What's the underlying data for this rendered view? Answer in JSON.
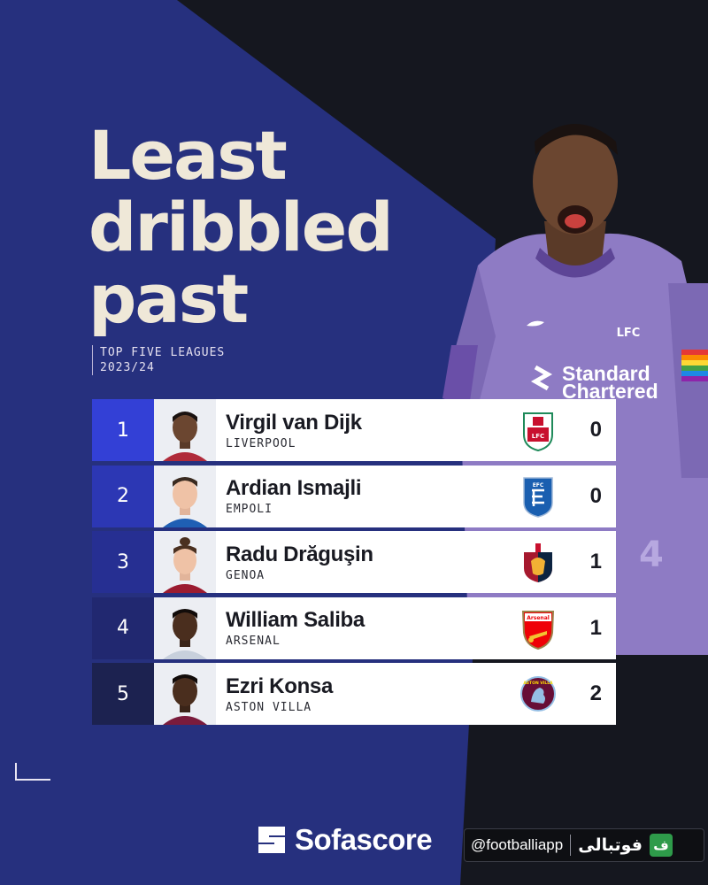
{
  "title_lines": [
    "Least",
    "dribbled",
    "past"
  ],
  "subtitle_lines": [
    "TOP FIVE LEAGUES",
    "2023/24"
  ],
  "colors": {
    "background": "#15171f",
    "panel_blue": "#26307e",
    "title_cream": "#efe8d8",
    "kit_purple": "#8e7bc4"
  },
  "hero": {
    "sponsor_line1": "Standard",
    "sponsor_line2": "Chartered",
    "crest_text": "LFC",
    "sleeve_number": "4"
  },
  "rows": [
    {
      "rank": "1",
      "name": "Virgil van Dijk",
      "club": "LIVERPOOL",
      "value": "0",
      "rank_color": "#3340d6",
      "badge_icon": "liverpool-crest-icon",
      "badge_text": "LFC"
    },
    {
      "rank": "2",
      "name": "Ardian Ismajli",
      "club": "EMPOLI",
      "value": "0",
      "rank_color": "#2c37b4",
      "badge_icon": "empoli-crest-icon",
      "badge_text": "EFC"
    },
    {
      "rank": "3",
      "name": "Radu Drăguşin",
      "club": "GENOA",
      "value": "1",
      "rank_color": "#262f92",
      "badge_icon": "genoa-crest-icon",
      "badge_text": ""
    },
    {
      "rank": "4",
      "name": "William Saliba",
      "club": "ARSENAL",
      "value": "1",
      "rank_color": "#212870",
      "badge_icon": "arsenal-crest-icon",
      "badge_text": "Arsenal"
    },
    {
      "rank": "5",
      "name": "Ezri Konsa",
      "club": "ASTON VILLA",
      "value": "2",
      "rank_color": "#1c2250",
      "badge_icon": "aston-villa-crest-icon",
      "badge_text": "ASTON VILLA"
    }
  ],
  "footer": {
    "brand": "Sofascore",
    "watermark_handle": "@footballiapp",
    "watermark_name": "فوتبالی",
    "watermark_logo_letter": "ف"
  }
}
